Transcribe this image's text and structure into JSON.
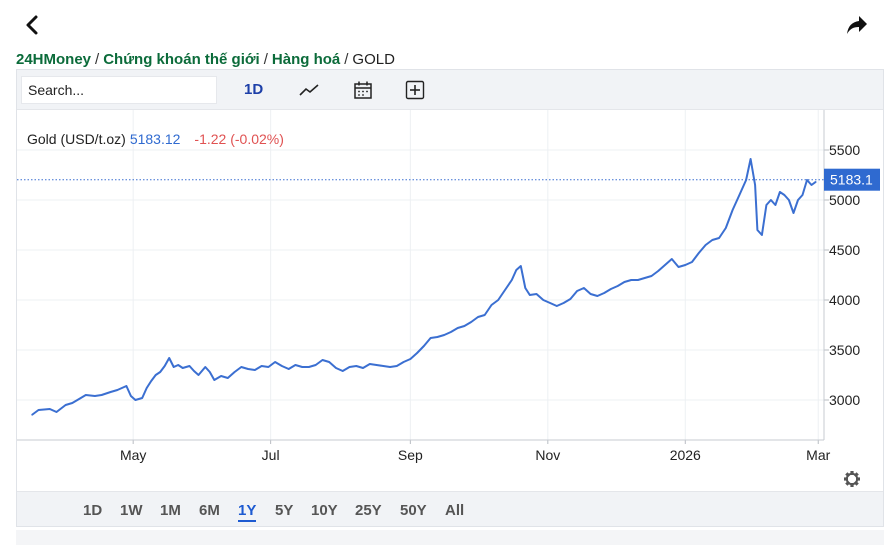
{
  "breadcrumb": {
    "root": "24HMoney",
    "section": "Chứng khoán thế giới",
    "category": "Hàng hoá",
    "current": "GOLD",
    "separator": "/"
  },
  "toolbar": {
    "search_placeholder": "Search...",
    "interval": "1D",
    "icons": [
      "chart-style-icon",
      "calendar-icon",
      "add-comparison-icon"
    ]
  },
  "legend": {
    "symbol": "Gold (USD/t.oz)",
    "last": "5183.12",
    "change": "-1.22 (-0.02%)"
  },
  "colors": {
    "line": "#3b6fd1",
    "up": "#2f6ad0",
    "down": "#e05252",
    "price_tag": "#2f6ad0",
    "brand": "#0b6b3a"
  },
  "ranges": {
    "items": [
      "1D",
      "1W",
      "1M",
      "6M",
      "1Y",
      "5Y",
      "10Y",
      "25Y",
      "50Y",
      "All"
    ],
    "active": "1Y"
  },
  "chart_data": {
    "type": "line",
    "title": "",
    "series": [
      {
        "name": "Gold (USD/t.oz)"
      }
    ],
    "x_ticks": [
      "May",
      "Jul",
      "Sep",
      "Nov",
      "2026",
      "Mar"
    ],
    "y_ticks": [
      "3000",
      "3500",
      "4000",
      "4500",
      "5000",
      "5500"
    ],
    "ylim": [
      2600,
      5900
    ],
    "last_price_label": "5183.1",
    "grid": true,
    "points": [
      [
        "2025-03-17",
        2850
      ],
      [
        "2025-03-20",
        2900
      ],
      [
        "2025-03-25",
        2910
      ],
      [
        "2025-03-28",
        2880
      ],
      [
        "2025-04-01",
        2950
      ],
      [
        "2025-04-04",
        2970
      ],
      [
        "2025-04-07",
        3010
      ],
      [
        "2025-04-10",
        3050
      ],
      [
        "2025-04-14",
        3040
      ],
      [
        "2025-04-17",
        3050
      ],
      [
        "2025-04-21",
        3080
      ],
      [
        "2025-04-24",
        3100
      ],
      [
        "2025-04-28",
        3140
      ],
      [
        "2025-04-30",
        3040
      ],
      [
        "2025-05-02",
        3000
      ],
      [
        "2025-05-05",
        3020
      ],
      [
        "2025-05-07",
        3120
      ],
      [
        "2025-05-09",
        3190
      ],
      [
        "2025-05-11",
        3250
      ],
      [
        "2025-05-13",
        3280
      ],
      [
        "2025-05-15",
        3340
      ],
      [
        "2025-05-17",
        3420
      ],
      [
        "2025-05-19",
        3330
      ],
      [
        "2025-05-21",
        3350
      ],
      [
        "2025-05-23",
        3320
      ],
      [
        "2025-05-26",
        3340
      ],
      [
        "2025-05-28",
        3290
      ],
      [
        "2025-05-30",
        3250
      ],
      [
        "2025-06-02",
        3330
      ],
      [
        "2025-06-04",
        3280
      ],
      [
        "2025-06-06",
        3200
      ],
      [
        "2025-06-09",
        3240
      ],
      [
        "2025-06-12",
        3220
      ],
      [
        "2025-06-15",
        3280
      ],
      [
        "2025-06-18",
        3330
      ],
      [
        "2025-06-21",
        3310
      ],
      [
        "2025-06-24",
        3300
      ],
      [
        "2025-06-27",
        3340
      ],
      [
        "2025-06-30",
        3330
      ],
      [
        "2025-07-03",
        3380
      ],
      [
        "2025-07-06",
        3340
      ],
      [
        "2025-07-09",
        3310
      ],
      [
        "2025-07-12",
        3350
      ],
      [
        "2025-07-15",
        3330
      ],
      [
        "2025-07-18",
        3330
      ],
      [
        "2025-07-21",
        3350
      ],
      [
        "2025-07-24",
        3400
      ],
      [
        "2025-07-27",
        3380
      ],
      [
        "2025-07-30",
        3320
      ],
      [
        "2025-08-02",
        3290
      ],
      [
        "2025-08-05",
        3330
      ],
      [
        "2025-08-08",
        3340
      ],
      [
        "2025-08-11",
        3320
      ],
      [
        "2025-08-14",
        3360
      ],
      [
        "2025-08-17",
        3350
      ],
      [
        "2025-08-20",
        3340
      ],
      [
        "2025-08-23",
        3330
      ],
      [
        "2025-08-26",
        3340
      ],
      [
        "2025-08-29",
        3380
      ],
      [
        "2025-09-01",
        3410
      ],
      [
        "2025-09-04",
        3470
      ],
      [
        "2025-09-07",
        3540
      ],
      [
        "2025-09-10",
        3620
      ],
      [
        "2025-09-13",
        3630
      ],
      [
        "2025-09-16",
        3650
      ],
      [
        "2025-09-19",
        3680
      ],
      [
        "2025-09-22",
        3720
      ],
      [
        "2025-09-25",
        3740
      ],
      [
        "2025-09-28",
        3780
      ],
      [
        "2025-10-01",
        3830
      ],
      [
        "2025-10-04",
        3850
      ],
      [
        "2025-10-07",
        3950
      ],
      [
        "2025-10-10",
        4000
      ],
      [
        "2025-10-13",
        4100
      ],
      [
        "2025-10-16",
        4200
      ],
      [
        "2025-10-18",
        4300
      ],
      [
        "2025-10-20",
        4340
      ],
      [
        "2025-10-22",
        4120
      ],
      [
        "2025-10-24",
        4050
      ],
      [
        "2025-10-27",
        4060
      ],
      [
        "2025-10-30",
        4000
      ],
      [
        "2025-11-02",
        3970
      ],
      [
        "2025-11-05",
        3940
      ],
      [
        "2025-11-08",
        3970
      ],
      [
        "2025-11-11",
        4010
      ],
      [
        "2025-11-14",
        4090
      ],
      [
        "2025-11-17",
        4120
      ],
      [
        "2025-11-20",
        4060
      ],
      [
        "2025-11-23",
        4040
      ],
      [
        "2025-11-26",
        4070
      ],
      [
        "2025-11-29",
        4110
      ],
      [
        "2025-12-02",
        4140
      ],
      [
        "2025-12-05",
        4180
      ],
      [
        "2025-12-08",
        4200
      ],
      [
        "2025-12-11",
        4200
      ],
      [
        "2025-12-14",
        4220
      ],
      [
        "2025-12-17",
        4240
      ],
      [
        "2025-12-20",
        4290
      ],
      [
        "2025-12-23",
        4350
      ],
      [
        "2025-12-26",
        4410
      ],
      [
        "2025-12-29",
        4330
      ],
      [
        "2026-01-01",
        4350
      ],
      [
        "2026-01-04",
        4380
      ],
      [
        "2026-01-07",
        4470
      ],
      [
        "2026-01-10",
        4550
      ],
      [
        "2026-01-13",
        4600
      ],
      [
        "2026-01-16",
        4620
      ],
      [
        "2026-01-19",
        4720
      ],
      [
        "2026-01-22",
        4900
      ],
      [
        "2026-01-25",
        5050
      ],
      [
        "2026-01-28",
        5200
      ],
      [
        "2026-01-30",
        5410
      ],
      [
        "2026-02-01",
        5150
      ],
      [
        "2026-02-02",
        4700
      ],
      [
        "2026-02-04",
        4650
      ],
      [
        "2026-02-06",
        4950
      ],
      [
        "2026-02-08",
        5000
      ],
      [
        "2026-02-10",
        4950
      ],
      [
        "2026-02-12",
        5080
      ],
      [
        "2026-02-14",
        5050
      ],
      [
        "2026-02-16",
        5000
      ],
      [
        "2026-02-18",
        4870
      ],
      [
        "2026-02-20",
        5000
      ],
      [
        "2026-02-22",
        5050
      ],
      [
        "2026-02-24",
        5200
      ],
      [
        "2026-02-26",
        5150
      ],
      [
        "2026-02-28",
        5183
      ]
    ]
  }
}
